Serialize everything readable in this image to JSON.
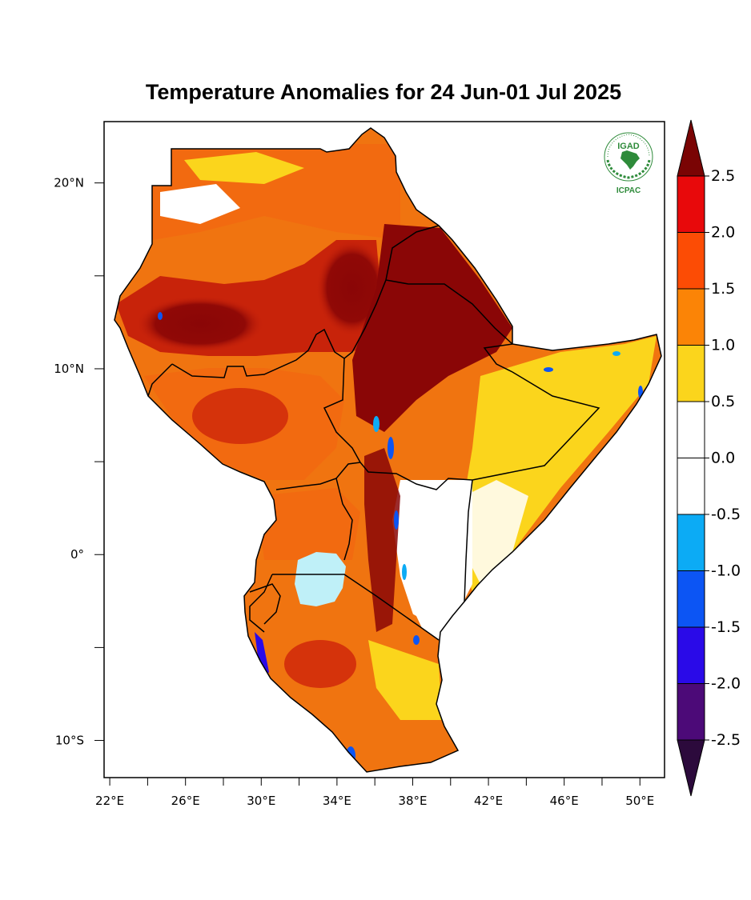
{
  "title": "Temperature Anomalies for 24 Jun-01 Jul 2025",
  "logo": {
    "top_text": "IGAD",
    "bottom_text": "ICPAC",
    "icon": "igad-emblem-icon"
  },
  "map": {
    "region": "Eastern Africa",
    "lon_range": [
      21.7,
      51.3
    ],
    "lat_range": [
      -12,
      23.3
    ],
    "x_ticks": [
      {
        "lon": 22,
        "label": "22°E"
      },
      {
        "lon": 26,
        "label": "26°E"
      },
      {
        "lon": 30,
        "label": "30°E"
      },
      {
        "lon": 34,
        "label": "34°E"
      },
      {
        "lon": 38,
        "label": "38°E"
      },
      {
        "lon": 42,
        "label": "42°E"
      },
      {
        "lon": 46,
        "label": "46°E"
      },
      {
        "lon": 50,
        "label": "50°E"
      }
    ],
    "x_minor_ticks": [
      24,
      28,
      32,
      36,
      40,
      44,
      48
    ],
    "y_ticks": [
      {
        "lat": 20,
        "label": "20°N"
      },
      {
        "lat": 10,
        "label": "10°N"
      },
      {
        "lat": 0,
        "label": "0°"
      },
      {
        "lat": -10,
        "label": "10°S"
      }
    ],
    "y_minor_ticks": [
      15,
      5,
      -5
    ]
  },
  "colorbar": {
    "levels": [
      {
        "label": "2.5"
      },
      {
        "label": "2.0"
      },
      {
        "label": "1.5"
      },
      {
        "label": "1.0"
      },
      {
        "label": "0.5"
      },
      {
        "label": "0.0"
      },
      {
        "label": "-0.5"
      },
      {
        "label": "-1.0"
      },
      {
        "label": "-1.5"
      },
      {
        "label": "-2.0"
      },
      {
        "label": "-2.5"
      }
    ],
    "top_arrow_color": "#7a0404",
    "bottom_arrow_color": "#2c0a3c",
    "bins": [
      {
        "range": "2.0 to 2.5",
        "color": "#e8090b"
      },
      {
        "range": "1.5 to 2.0",
        "color": "#fc4c05"
      },
      {
        "range": "1.0 to 1.5",
        "color": "#fb8406"
      },
      {
        "range": "0.5 to 1.0",
        "color": "#fbd51c"
      },
      {
        "range": "0.0 to 0.5",
        "color": "#ffffff"
      },
      {
        "range": "-0.5 to 0.0",
        "color": "#ffffff"
      },
      {
        "range": "-1.0 to -0.5",
        "color": "#0cabf5"
      },
      {
        "range": "-1.5 to -1.0",
        "color": "#0c55f4"
      },
      {
        "range": "-2.0 to -1.5",
        "color": "#2a0ae8"
      },
      {
        "range": "-2.5 to -2.0",
        "color": "#4c0a78"
      }
    ]
  },
  "colors": {
    "very_hot": "#8a0606",
    "hot": "#c8230a",
    "warm": "#f07410",
    "mild": "#fbd51c",
    "lake": "#bff0f8",
    "border": "#000000"
  }
}
